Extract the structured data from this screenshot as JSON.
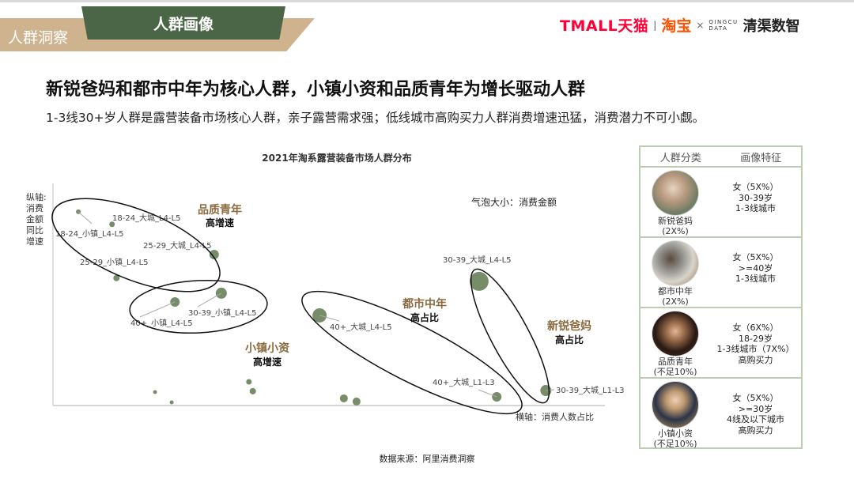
{
  "header": {
    "section": "人群洞察",
    "tab": "人群画像",
    "logos": {
      "tmall": "TMALL天猫",
      "taobao": "淘宝",
      "cross": "×",
      "qingcu_top": "QINGCU",
      "qingcu_bottom": "DATA",
      "qingqu": "清渠数智"
    }
  },
  "title": "新锐爸妈和都市中年为核心人群，小镇小资和品质青年为增长驱动人群",
  "subtitle": "1-3线30+岁人群是露营装备市场核心人群，亲子露营需求强；低线城市高购买力人群消费增速迅猛，消费潜力不可小觑。",
  "chart_data": {
    "type": "scatter",
    "subtype": "bubble",
    "title": "2021年淘系露营装备市场人群分布",
    "ylabel": "纵轴：消费金额同比增速",
    "ylabel_lines": [
      "纵轴:",
      "消费",
      "金额",
      "同比",
      "增速"
    ],
    "xlabel": "横轴：消费人数占比",
    "size_note": "气泡大小：消费金额",
    "grid": false,
    "bubble_color": "#778c68",
    "points": [
      {
        "label": "18-24_小镇_L4-L5",
        "x": 4.6,
        "y": 86.6,
        "size": 3
      },
      {
        "label": "18-24_大城_L4-L5",
        "x": 10.7,
        "y": 81.0,
        "size": 3.5
      },
      {
        "label": "25-29_大城_L4-L5",
        "x": 29.2,
        "y": 67.5,
        "size": 6
      },
      {
        "label": "25-29_小镇_L4-L5",
        "x": 11.5,
        "y": 57.0,
        "size": 4
      },
      {
        "label": "30-39_小镇_L4-L5",
        "x": 30.5,
        "y": 50.2,
        "size": 7
      },
      {
        "label": "40+_小镇_L4-L5",
        "x": 22.1,
        "y": 46.3,
        "size": 6
      },
      {
        "label": "40+_大城_L4-L5",
        "x": 48.3,
        "y": 40.3,
        "size": 9
      },
      {
        "label": "30-39_大城_L4-L5",
        "x": 77.2,
        "y": 55.5,
        "size": 12
      },
      {
        "label": "40+_大城_L1-L3",
        "x": 80.4,
        "y": 3.9,
        "size": 6
      },
      {
        "label": "30-39_大城_L1-L3",
        "x": 89.3,
        "y": 6.7,
        "size": 7
      },
      {
        "label": "",
        "x": 18.5,
        "y": 6.0,
        "size": 2.5
      },
      {
        "label": "",
        "x": 21.5,
        "y": 1.4,
        "size": 2.5
      },
      {
        "label": "",
        "x": 35.5,
        "y": 10.6,
        "size": 3.5
      },
      {
        "label": "",
        "x": 36.2,
        "y": 6.4,
        "size": 4
      },
      {
        "label": "",
        "x": 52.7,
        "y": 3.2,
        "size": 5
      },
      {
        "label": "",
        "x": 55.0,
        "y": 1.8,
        "size": 5
      }
    ],
    "groups": [
      {
        "name": "品质青年",
        "tag": "高增速"
      },
      {
        "name": "小镇小资",
        "tag": "高增速"
      },
      {
        "name": "都市中年",
        "tag": "高占比"
      },
      {
        "name": "新锐爸妈",
        "tag": "高占比"
      }
    ],
    "group_color": "#8b6a3e"
  },
  "table": {
    "headers": [
      "人群分类",
      "画像特征"
    ],
    "rows": [
      {
        "name": "新锐爸妈",
        "share": "(2X%)",
        "features": [
          "女（5X%）",
          "30-39岁",
          "1-3线城市"
        ]
      },
      {
        "name": "都市中年",
        "share": "(2X%)",
        "features": [
          "女（5X%）",
          ">=40岁",
          "1-3线城市"
        ]
      },
      {
        "name": "品质青年",
        "share": "(不足10%)",
        "features": [
          "女（6X%）",
          "18-29岁",
          "1-3线城市（7X%）",
          "高购买力"
        ]
      },
      {
        "name": "小镇小资",
        "share": "(不足10%)",
        "features": [
          "女（5X%）",
          ">=30岁",
          "4线及以下城市",
          "高购买力"
        ]
      }
    ]
  },
  "source": "数据来源：阿里消费洞察"
}
